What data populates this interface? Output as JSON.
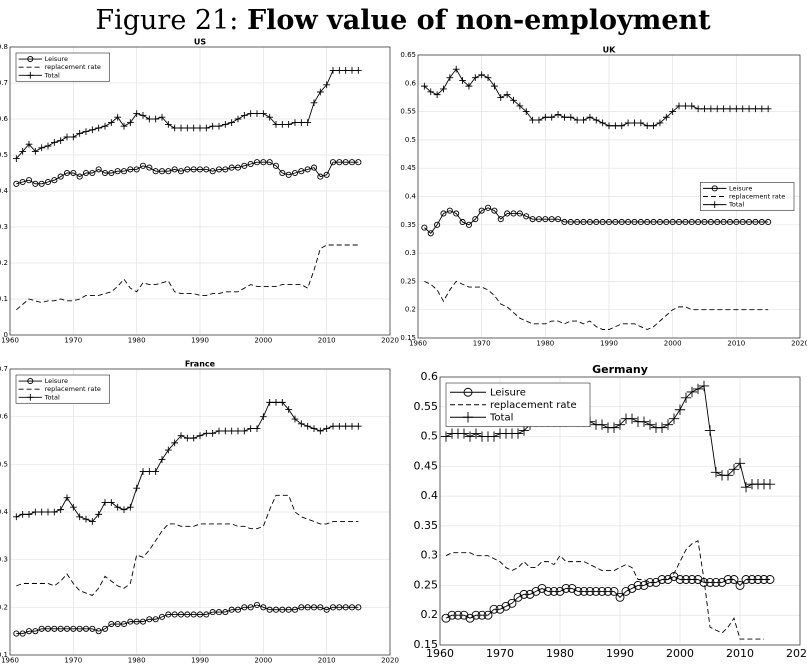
{
  "figure": {
    "label": "Figure 21:",
    "title": "Flow value of non-employment"
  },
  "chart_data": [
    {
      "type": "line",
      "title": "US",
      "grid": true,
      "legend": "upper left",
      "xlim": [
        1960,
        2020
      ],
      "xticks": [
        1960,
        1970,
        1980,
        1990,
        2000,
        2010,
        2020
      ],
      "ylim": [
        0,
        0.8
      ],
      "yticks": [
        0,
        0.1,
        0.2,
        0.3,
        0.4,
        0.5,
        0.6,
        0.7,
        0.8
      ],
      "x": [
        1961,
        1962,
        1963,
        1964,
        1965,
        1966,
        1967,
        1968,
        1969,
        1970,
        1971,
        1972,
        1973,
        1974,
        1975,
        1976,
        1977,
        1978,
        1979,
        1980,
        1981,
        1982,
        1983,
        1984,
        1985,
        1986,
        1987,
        1988,
        1989,
        1990,
        1991,
        1992,
        1993,
        1994,
        1995,
        1996,
        1997,
        1998,
        1999,
        2000,
        2001,
        2002,
        2003,
        2004,
        2005,
        2006,
        2007,
        2008,
        2009,
        2010,
        2011,
        2012,
        2013,
        2014,
        2015
      ],
      "series": [
        {
          "name": "Leisure",
          "color": "#000000",
          "marker": "o",
          "linestyle": "solid",
          "values": [
            0.42,
            0.425,
            0.43,
            0.42,
            0.42,
            0.425,
            0.43,
            0.44,
            0.45,
            0.45,
            0.44,
            0.45,
            0.45,
            0.46,
            0.45,
            0.45,
            0.455,
            0.455,
            0.46,
            0.46,
            0.47,
            0.465,
            0.455,
            0.455,
            0.455,
            0.46,
            0.455,
            0.46,
            0.46,
            0.46,
            0.46,
            0.455,
            0.46,
            0.46,
            0.465,
            0.465,
            0.47,
            0.475,
            0.48,
            0.48,
            0.48,
            0.47,
            0.45,
            0.445,
            0.45,
            0.455,
            0.46,
            0.465,
            0.44,
            0.445,
            0.48,
            0.48,
            0.48,
            0.48,
            0.48
          ]
        },
        {
          "name": "replacement rate",
          "color": "#000000",
          "marker": "none",
          "linestyle": "dashed",
          "values": [
            0.07,
            0.085,
            0.1,
            0.095,
            0.09,
            0.095,
            0.095,
            0.1,
            0.095,
            0.095,
            0.1,
            0.11,
            0.11,
            0.11,
            0.115,
            0.12,
            0.135,
            0.155,
            0.13,
            0.12,
            0.145,
            0.14,
            0.14,
            0.145,
            0.15,
            0.12,
            0.115,
            0.115,
            0.115,
            0.11,
            0.11,
            0.115,
            0.115,
            0.12,
            0.12,
            0.12,
            0.13,
            0.14,
            0.135,
            0.135,
            0.135,
            0.135,
            0.14,
            0.14,
            0.14,
            0.14,
            0.13,
            0.18,
            0.24,
            0.25,
            0.25,
            0.25,
            0.25,
            0.25,
            0.25
          ]
        },
        {
          "name": "Total",
          "color": "#000000",
          "marker": "+",
          "linestyle": "solid",
          "values": [
            0.49,
            0.51,
            0.53,
            0.51,
            0.52,
            0.525,
            0.535,
            0.54,
            0.55,
            0.55,
            0.56,
            0.565,
            0.57,
            0.575,
            0.58,
            0.59,
            0.605,
            0.58,
            0.59,
            0.615,
            0.61,
            0.6,
            0.6,
            0.605,
            0.585,
            0.575,
            0.575,
            0.575,
            0.575,
            0.575,
            0.575,
            0.58,
            0.58,
            0.585,
            0.59,
            0.6,
            0.61,
            0.615,
            0.615,
            0.615,
            0.605,
            0.585,
            0.585,
            0.585,
            0.59,
            0.59,
            0.59,
            0.645,
            0.675,
            0.695,
            0.735,
            0.735,
            0.735,
            0.735,
            0.735
          ]
        }
      ]
    },
    {
      "type": "line",
      "title": "UK",
      "grid": true,
      "legend": "center right",
      "xlim": [
        1960,
        2020
      ],
      "xticks": [
        1960,
        1970,
        1980,
        1990,
        2000,
        2010,
        2020
      ],
      "ylim": [
        0.15,
        0.65
      ],
      "yticks": [
        0.15,
        0.2,
        0.25,
        0.3,
        0.35,
        0.4,
        0.45,
        0.5,
        0.55,
        0.6,
        0.65
      ],
      "x": [
        1961,
        1962,
        1963,
        1964,
        1965,
        1966,
        1967,
        1968,
        1969,
        1970,
        1971,
        1972,
        1973,
        1974,
        1975,
        1976,
        1977,
        1978,
        1979,
        1980,
        1981,
        1982,
        1983,
        1984,
        1985,
        1986,
        1987,
        1988,
        1989,
        1990,
        1991,
        1992,
        1993,
        1994,
        1995,
        1996,
        1997,
        1998,
        1999,
        2000,
        2001,
        2002,
        2003,
        2004,
        2005,
        2006,
        2007,
        2008,
        2009,
        2010,
        2011,
        2012,
        2013,
        2014,
        2015
      ],
      "series": [
        {
          "name": "Leisure",
          "color": "#000000",
          "marker": "o",
          "linestyle": "solid",
          "values": [
            0.345,
            0.335,
            0.35,
            0.37,
            0.375,
            0.37,
            0.355,
            0.35,
            0.36,
            0.375,
            0.38,
            0.375,
            0.36,
            0.37,
            0.37,
            0.37,
            0.365,
            0.36,
            0.36,
            0.36,
            0.36,
            0.36,
            0.355,
            0.355,
            0.355,
            0.355,
            0.355,
            0.355,
            0.355,
            0.355,
            0.355,
            0.355,
            0.355,
            0.355,
            0.355,
            0.355,
            0.355,
            0.355,
            0.355,
            0.355,
            0.355,
            0.355,
            0.355,
            0.355,
            0.355,
            0.355,
            0.355,
            0.355,
            0.355,
            0.355,
            0.355,
            0.355,
            0.355,
            0.355,
            0.355
          ]
        },
        {
          "name": "replacement rate",
          "color": "#000000",
          "marker": "none",
          "linestyle": "dashed",
          "values": [
            0.25,
            0.245,
            0.235,
            0.215,
            0.235,
            0.25,
            0.245,
            0.24,
            0.24,
            0.24,
            0.235,
            0.225,
            0.21,
            0.205,
            0.195,
            0.185,
            0.18,
            0.175,
            0.175,
            0.175,
            0.18,
            0.18,
            0.175,
            0.18,
            0.18,
            0.175,
            0.18,
            0.17,
            0.165,
            0.165,
            0.17,
            0.175,
            0.175,
            0.175,
            0.17,
            0.165,
            0.17,
            0.18,
            0.19,
            0.2,
            0.205,
            0.205,
            0.2,
            0.2,
            0.2,
            0.2,
            0.2,
            0.2,
            0.2,
            0.2,
            0.2,
            0.2,
            0.2,
            0.2,
            0.2
          ]
        },
        {
          "name": "Total",
          "color": "#000000",
          "marker": "+",
          "linestyle": "solid",
          "values": [
            0.595,
            0.585,
            0.58,
            0.59,
            0.61,
            0.625,
            0.605,
            0.595,
            0.61,
            0.615,
            0.61,
            0.595,
            0.575,
            0.58,
            0.57,
            0.56,
            0.55,
            0.535,
            0.535,
            0.54,
            0.54,
            0.545,
            0.54,
            0.54,
            0.535,
            0.535,
            0.54,
            0.535,
            0.53,
            0.525,
            0.525,
            0.525,
            0.53,
            0.53,
            0.53,
            0.525,
            0.525,
            0.53,
            0.54,
            0.55,
            0.56,
            0.56,
            0.56,
            0.555,
            0.555,
            0.555,
            0.555,
            0.555,
            0.555,
            0.555,
            0.555,
            0.555,
            0.555,
            0.555,
            0.555
          ]
        }
      ]
    },
    {
      "type": "line",
      "title": "France",
      "grid": true,
      "legend": "upper left",
      "xlim": [
        1960,
        2020
      ],
      "xticks": [
        1960,
        1970,
        1980,
        1990,
        2000,
        2010,
        2020
      ],
      "ylim": [
        0.1,
        0.7
      ],
      "yticks": [
        0.1,
        0.2,
        0.3,
        0.4,
        0.5,
        0.6,
        0.7
      ],
      "x": [
        1961,
        1962,
        1963,
        1964,
        1965,
        1966,
        1967,
        1968,
        1969,
        1970,
        1971,
        1972,
        1973,
        1974,
        1975,
        1976,
        1977,
        1978,
        1979,
        1980,
        1981,
        1982,
        1983,
        1984,
        1985,
        1986,
        1987,
        1988,
        1989,
        1990,
        1991,
        1992,
        1993,
        1994,
        1995,
        1996,
        1997,
        1998,
        1999,
        2000,
        2001,
        2002,
        2003,
        2004,
        2005,
        2006,
        2007,
        2008,
        2009,
        2010,
        2011,
        2012,
        2013,
        2014,
        2015
      ],
      "series": [
        {
          "name": "Leisure",
          "color": "#000000",
          "marker": "o",
          "linestyle": "solid",
          "values": [
            0.145,
            0.145,
            0.15,
            0.15,
            0.155,
            0.155,
            0.155,
            0.155,
            0.155,
            0.155,
            0.155,
            0.155,
            0.155,
            0.15,
            0.155,
            0.165,
            0.165,
            0.165,
            0.17,
            0.17,
            0.17,
            0.175,
            0.175,
            0.18,
            0.185,
            0.185,
            0.185,
            0.185,
            0.185,
            0.185,
            0.185,
            0.19,
            0.19,
            0.19,
            0.195,
            0.195,
            0.2,
            0.2,
            0.205,
            0.2,
            0.195,
            0.195,
            0.195,
            0.195,
            0.195,
            0.2,
            0.2,
            0.2,
            0.2,
            0.195,
            0.2,
            0.2,
            0.2,
            0.2,
            0.2
          ]
        },
        {
          "name": "replacement rate",
          "color": "#000000",
          "marker": "none",
          "linestyle": "dashed",
          "values": [
            0.245,
            0.25,
            0.25,
            0.25,
            0.25,
            0.25,
            0.245,
            0.255,
            0.27,
            0.25,
            0.235,
            0.23,
            0.225,
            0.24,
            0.265,
            0.255,
            0.245,
            0.24,
            0.25,
            0.31,
            0.305,
            0.32,
            0.34,
            0.36,
            0.375,
            0.375,
            0.37,
            0.37,
            0.37,
            0.375,
            0.375,
            0.375,
            0.375,
            0.375,
            0.375,
            0.37,
            0.37,
            0.365,
            0.365,
            0.37,
            0.405,
            0.435,
            0.435,
            0.435,
            0.4,
            0.39,
            0.385,
            0.38,
            0.375,
            0.375,
            0.38,
            0.38,
            0.38,
            0.38,
            0.38
          ]
        },
        {
          "name": "Total",
          "color": "#000000",
          "marker": "+",
          "linestyle": "solid",
          "values": [
            0.39,
            0.395,
            0.395,
            0.4,
            0.4,
            0.4,
            0.4,
            0.405,
            0.43,
            0.41,
            0.39,
            0.385,
            0.38,
            0.395,
            0.42,
            0.42,
            0.41,
            0.405,
            0.41,
            0.45,
            0.485,
            0.485,
            0.485,
            0.51,
            0.53,
            0.545,
            0.56,
            0.555,
            0.555,
            0.56,
            0.565,
            0.565,
            0.57,
            0.57,
            0.57,
            0.57,
            0.57,
            0.575,
            0.575,
            0.6,
            0.63,
            0.63,
            0.63,
            0.615,
            0.595,
            0.585,
            0.58,
            0.575,
            0.57,
            0.575,
            0.58,
            0.58,
            0.58,
            0.58,
            0.58
          ]
        }
      ]
    },
    {
      "type": "line",
      "title": "Germany",
      "grid": true,
      "legend": "upper left",
      "xlim": [
        1960,
        2020
      ],
      "xticks": [
        1960,
        1970,
        1980,
        1990,
        2000,
        2010,
        2020
      ],
      "ylim": [
        0.15,
        0.6
      ],
      "yticks": [
        0.15,
        0.2,
        0.25,
        0.3,
        0.35,
        0.4,
        0.45,
        0.5,
        0.55,
        0.6
      ],
      "x": [
        1961,
        1962,
        1963,
        1964,
        1965,
        1966,
        1967,
        1968,
        1969,
        1970,
        1971,
        1972,
        1973,
        1974,
        1975,
        1976,
        1977,
        1978,
        1979,
        1980,
        1981,
        1982,
        1983,
        1984,
        1985,
        1986,
        1987,
        1988,
        1989,
        1990,
        1991,
        1992,
        1993,
        1994,
        1995,
        1996,
        1997,
        1998,
        1999,
        2000,
        2001,
        2002,
        2003,
        2004,
        2005,
        2006,
        2007,
        2008,
        2009,
        2010,
        2011,
        2012,
        2013,
        2014,
        2015
      ],
      "series": [
        {
          "name": "Leisure",
          "color": "#000000",
          "marker": "o",
          "linestyle": "solid",
          "values": [
            0.195,
            0.2,
            0.2,
            0.2,
            0.195,
            0.2,
            0.2,
            0.2,
            0.21,
            0.21,
            0.215,
            0.22,
            0.23,
            0.235,
            0.235,
            0.24,
            0.245,
            0.24,
            0.24,
            0.24,
            0.245,
            0.245,
            0.24,
            0.24,
            0.24,
            0.24,
            0.24,
            0.24,
            0.24,
            0.23,
            0.24,
            0.245,
            0.25,
            0.25,
            0.255,
            0.255,
            0.26,
            0.26,
            0.265,
            0.26,
            0.26,
            0.26,
            0.26,
            0.255,
            0.255,
            0.255,
            0.255,
            0.26,
            0.26,
            0.25,
            0.26,
            0.26,
            0.26,
            0.26,
            0.26
          ]
        },
        {
          "name": "replacement rate",
          "color": "#000000",
          "marker": "none",
          "linestyle": "dashed",
          "values": [
            0.3,
            0.305,
            0.305,
            0.305,
            0.305,
            0.3,
            0.3,
            0.3,
            0.295,
            0.29,
            0.28,
            0.275,
            0.28,
            0.29,
            0.28,
            0.28,
            0.29,
            0.29,
            0.285,
            0.3,
            0.29,
            0.29,
            0.29,
            0.29,
            0.285,
            0.28,
            0.275,
            0.275,
            0.275,
            0.28,
            0.285,
            0.28,
            0.26,
            0.26,
            0.255,
            0.255,
            0.26,
            0.26,
            0.27,
            0.29,
            0.31,
            0.32,
            0.325,
            0.26,
            0.18,
            0.175,
            0.17,
            0.18,
            0.195,
            0.16,
            0.16,
            0.16,
            0.16,
            0.16,
            null
          ]
        },
        {
          "name": "Total",
          "color": "#000000",
          "marker": "+",
          "linestyle": "solid",
          "values": [
            0.5,
            0.505,
            0.505,
            0.505,
            0.5,
            0.505,
            0.5,
            0.5,
            0.5,
            0.505,
            0.505,
            0.505,
            0.505,
            0.51,
            0.52,
            0.525,
            0.525,
            0.525,
            0.525,
            0.525,
            0.525,
            0.53,
            0.525,
            0.525,
            0.525,
            0.52,
            0.52,
            0.515,
            0.515,
            0.52,
            0.53,
            0.53,
            0.525,
            0.525,
            0.52,
            0.515,
            0.515,
            0.52,
            0.53,
            0.545,
            0.565,
            0.575,
            0.58,
            0.585,
            0.51,
            0.44,
            0.435,
            0.435,
            0.445,
            0.455,
            0.415,
            0.42,
            0.42,
            0.42,
            0.42
          ]
        }
      ]
    }
  ]
}
